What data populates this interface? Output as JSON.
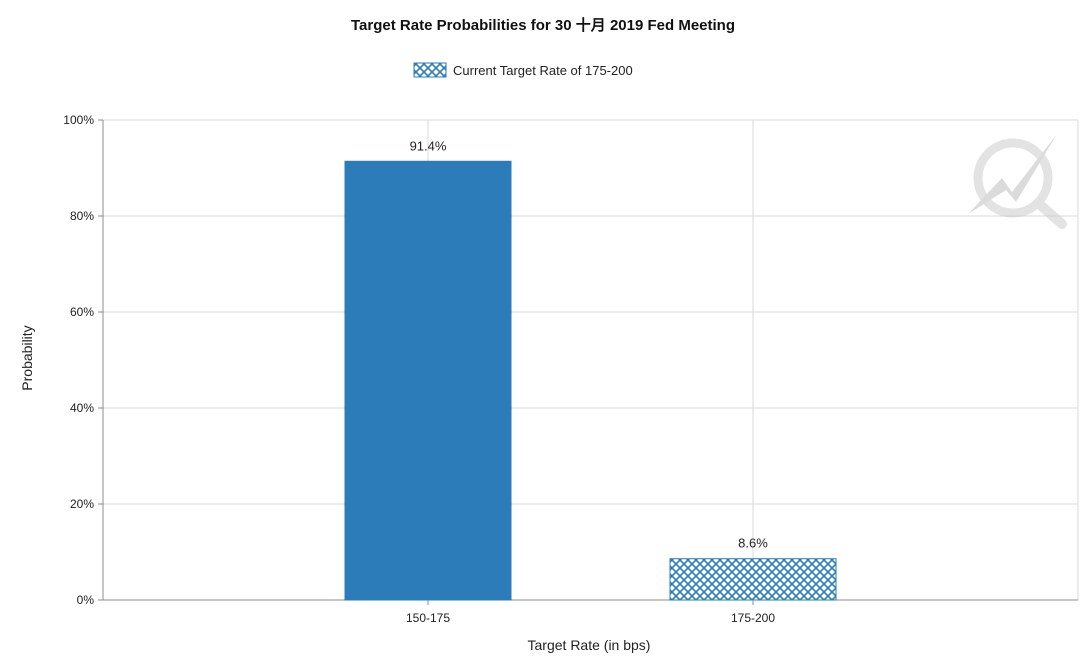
{
  "chart_data": {
    "type": "bar",
    "title": "Target Rate Probabilities for 30 十月 2019 Fed Meeting",
    "legend": [
      {
        "label": "Current Target Rate of 175-200",
        "pattern": "crosshatch"
      }
    ],
    "legend_position": "top-center",
    "categories": [
      "150-175",
      "175-200"
    ],
    "values": [
      91.4,
      8.6
    ],
    "data_labels": [
      "91.4%",
      "8.6%"
    ],
    "highlighted_category": "175-200",
    "xlabel": "Target Rate (in bps)",
    "ylabel": "Probability",
    "ylim": [
      0,
      100
    ],
    "yticks": [
      "0%",
      "20%",
      "40%",
      "60%",
      "80%",
      "100%"
    ],
    "grid": true,
    "colors": {
      "bar": "#2b7cb8",
      "grid": "#d9d9d9",
      "axis": "#8c8c8c"
    }
  }
}
